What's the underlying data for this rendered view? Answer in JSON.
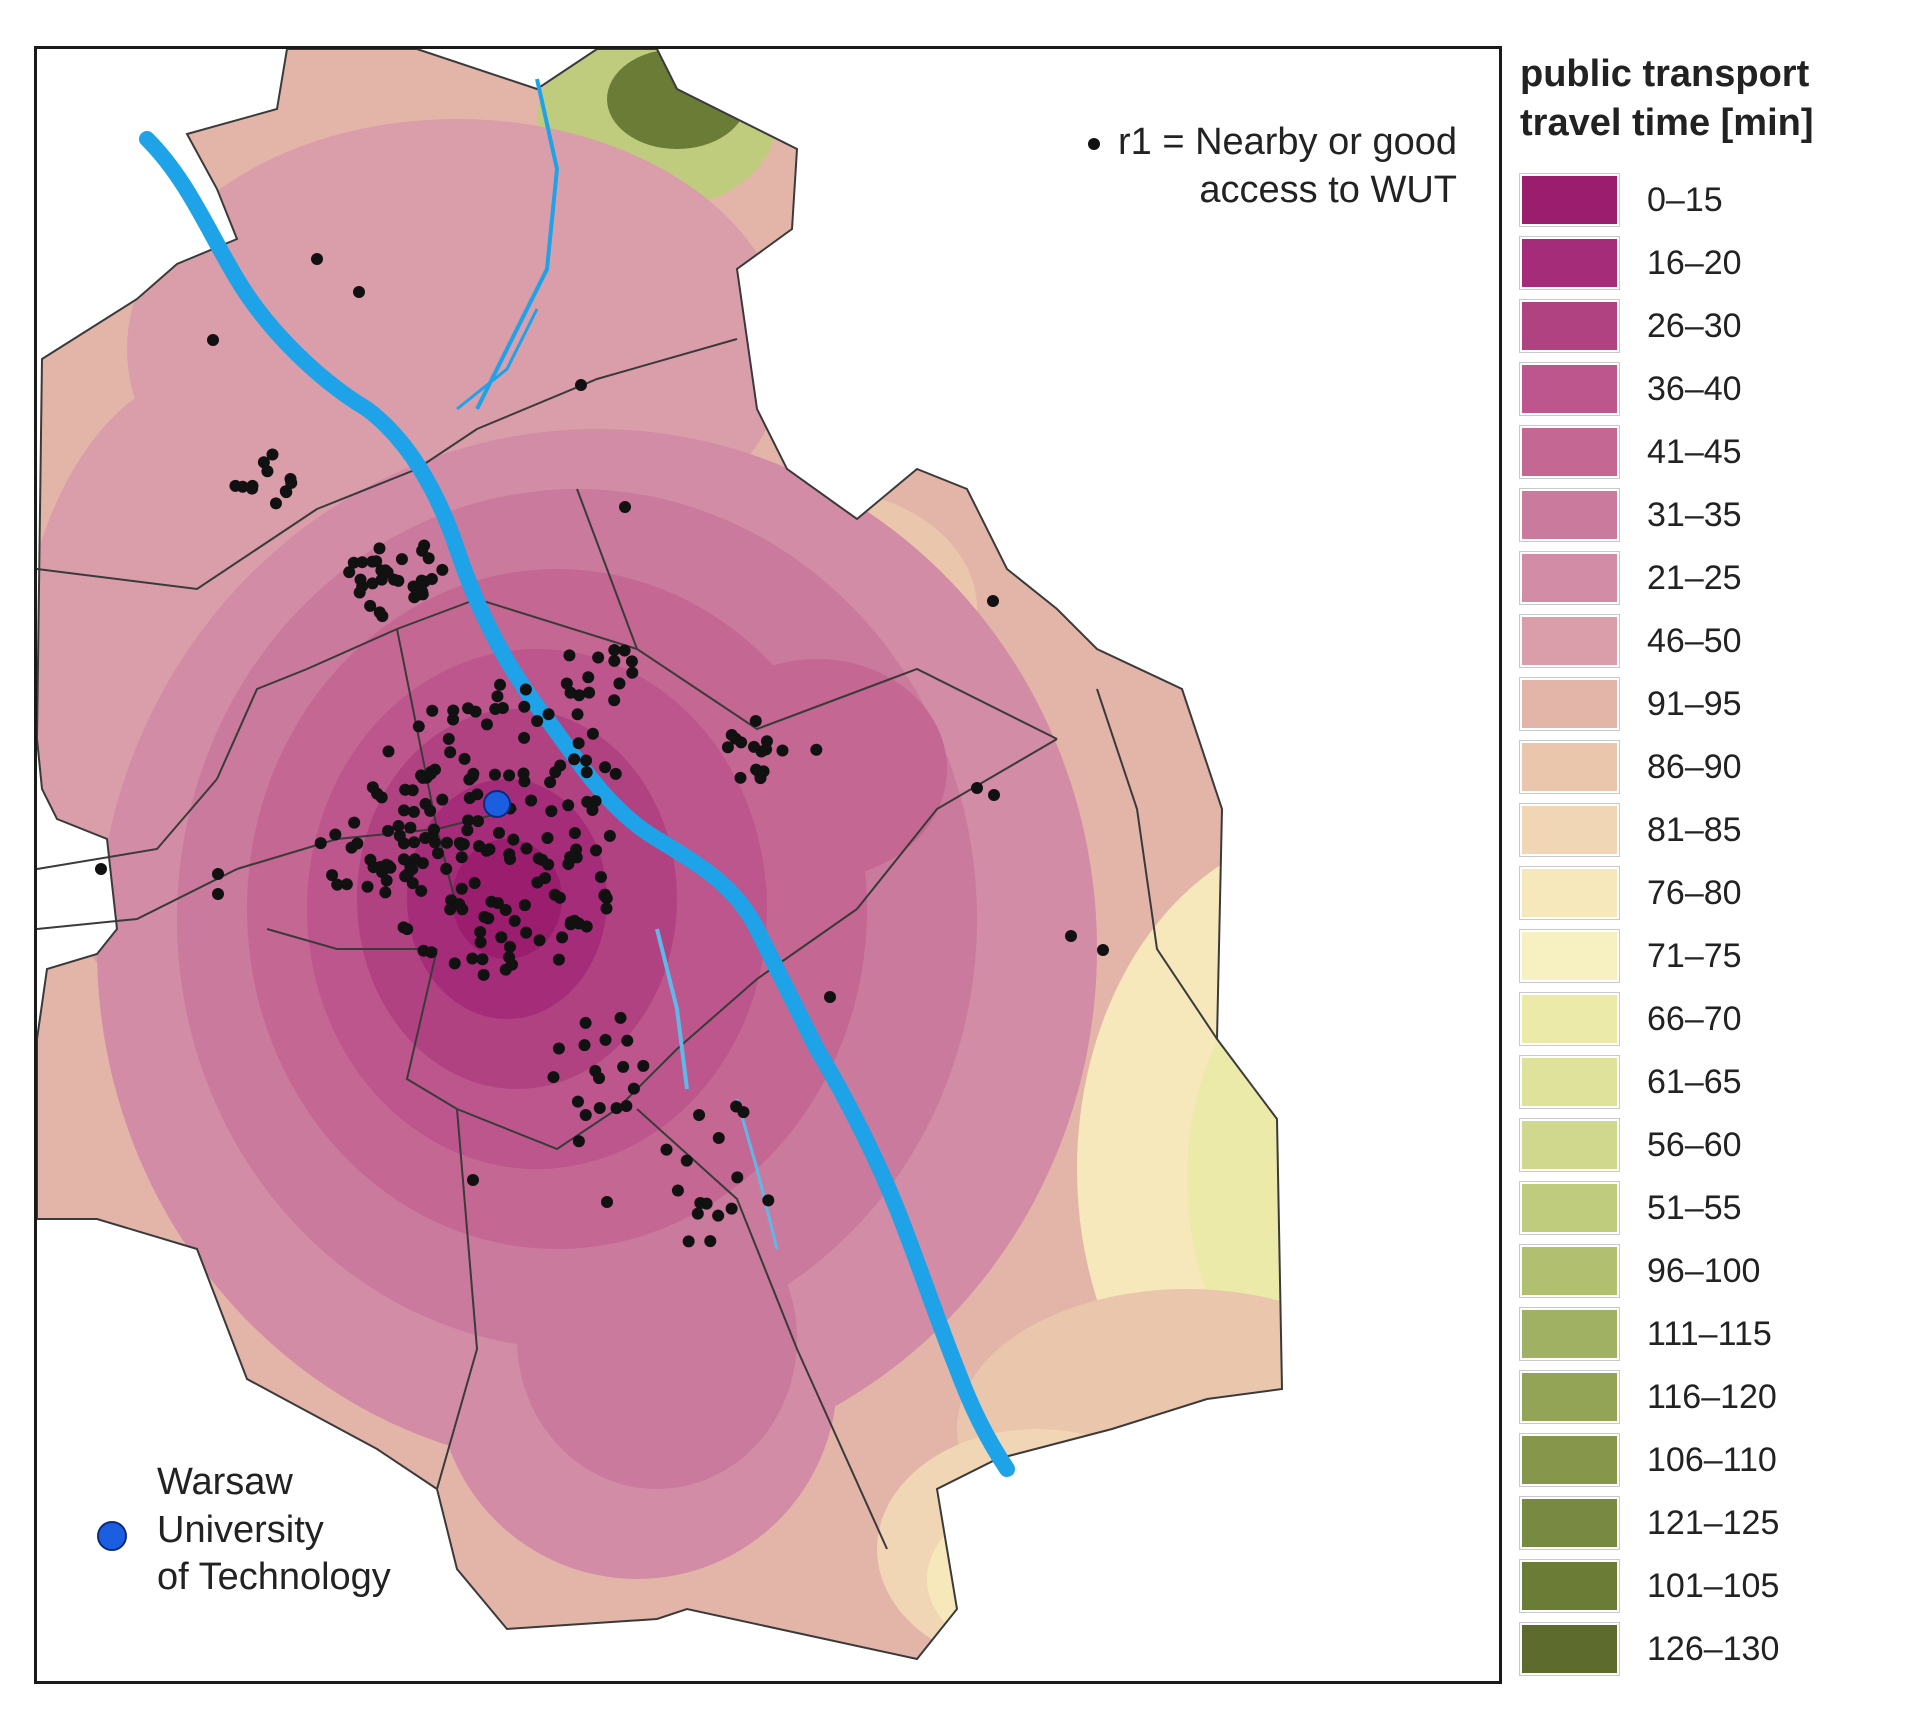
{
  "map": {
    "dot_legend": {
      "line1": "r1 = Nearby or good",
      "line2": "access to WUT"
    },
    "university_legend": {
      "line1": "Warsaw",
      "line2": "University",
      "line3": "of Technology"
    },
    "colors": {
      "river": "#1ea2e8",
      "boundary": "#3a3a3a",
      "dot": "#111111",
      "university_marker": "#1b5fe0"
    }
  },
  "legend": {
    "title_line1": "public transport",
    "title_line2": "travel time [min]",
    "classes": [
      {
        "label": "0–15",
        "color": "#9a1d6e"
      },
      {
        "label": "16–20",
        "color": "#a52c79"
      },
      {
        "label": "26–30",
        "color": "#b14282"
      },
      {
        "label": "36–40",
        "color": "#bc568c"
      },
      {
        "label": "41–45",
        "color": "#c46793"
      },
      {
        "label": "31–35",
        "color": "#ca7a9c"
      },
      {
        "label": "21–25",
        "color": "#d28ca5"
      },
      {
        "label": "46–50",
        "color": "#d99eaa"
      },
      {
        "label": "91–95",
        "color": "#e3b5a9"
      },
      {
        "label": "86–90",
        "color": "#eac6ad"
      },
      {
        "label": "81–85",
        "color": "#f0d6b4"
      },
      {
        "label": "76–80",
        "color": "#f6e8ba"
      },
      {
        "label": "71–75",
        "color": "#f7f0c0"
      },
      {
        "label": "66–70",
        "color": "#eceaa9"
      },
      {
        "label": "61–65",
        "color": "#dfe29a"
      },
      {
        "label": "56–60",
        "color": "#cfd88c"
      },
      {
        "label": "51–55",
        "color": "#bfcc7d"
      },
      {
        "label": "96–100",
        "color": "#b0bf70"
      },
      {
        "label": "111–115",
        "color": "#a1b163"
      },
      {
        "label": "116–120",
        "color": "#94a456"
      },
      {
        "label": "106–110",
        "color": "#86974b"
      },
      {
        "label": "121–125",
        "color": "#788a41"
      },
      {
        "label": "101–105",
        "color": "#6b7c37"
      },
      {
        "label": "126–130",
        "color": "#5d6c2d"
      }
    ]
  }
}
